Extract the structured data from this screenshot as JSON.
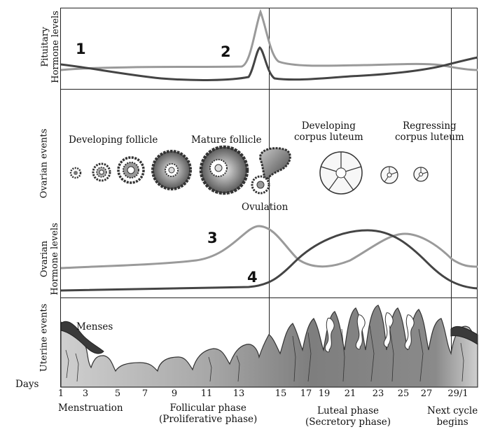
{
  "row_labels": {
    "pituitary": [
      "Pituitary",
      "Hormone levels"
    ],
    "ovarian_events": "Ovarian events",
    "ovarian_hormone": [
      "Ovarian",
      "Hormone levels"
    ],
    "uterine": "Uterine events",
    "days": "Days"
  },
  "curve_numbers": [
    "1",
    "2",
    "3",
    "4"
  ],
  "ovarian_labels": {
    "developing_follicle": "Developing follicle",
    "mature_follicle": "Mature follicle",
    "ovulation": "Ovulation",
    "developing_corpus_luteum": [
      "Developing",
      "corpus luteum"
    ],
    "regressing_corpus_luteum": [
      "Regressing",
      "corpus luteum"
    ]
  },
  "uterine_labels": {
    "menses": "Menses"
  },
  "day_ticks": [
    "1",
    "3",
    "5",
    "7",
    "9",
    "11",
    "13",
    "15",
    "17",
    "19",
    "21",
    "23",
    "25",
    "27",
    "29/1"
  ],
  "phases": {
    "menstruation": "Menstruation",
    "follicular": [
      "Follicular phase",
      "(Proliferative phase)"
    ],
    "luteal": [
      "Luteal phase",
      "(Secretory phase)"
    ],
    "next_cycle": [
      "Next cycle",
      "begins"
    ]
  },
  "colors": {
    "light_curve": "#9a9a9a",
    "dark_curve": "#444444",
    "tissue": "#8c8c8c"
  }
}
